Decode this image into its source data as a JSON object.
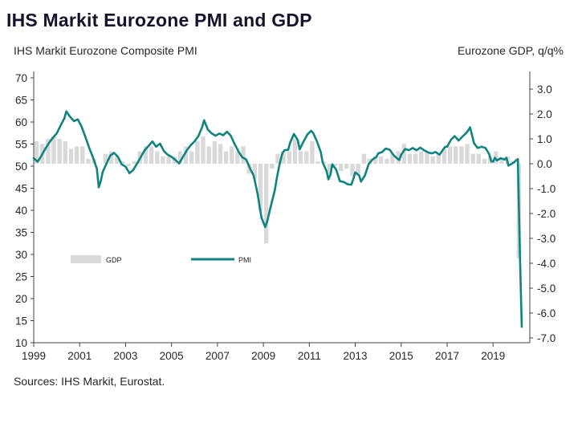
{
  "page": {
    "title": "IHS Markit Eurozone PMI and GDP",
    "subtitle_left": "IHS Markit Eurozone Composite PMI",
    "subtitle_right": "Eurozone GDP, q/q%",
    "sources": "Sources: IHS Markit, Eurostat."
  },
  "colors": {
    "pmi_line": "#0f837d",
    "gdp_bar": "#d9d9d9",
    "axis": "#404040",
    "text": "#262626",
    "title": "#14142b"
  },
  "chart_data": {
    "type": "line+bar",
    "title": "IHS Markit Eurozone PMI and GDP",
    "left_axis": {
      "label": "IHS Markit Eurozone Composite PMI",
      "min": 10,
      "max": 70,
      "ticks": [
        10,
        15,
        20,
        25,
        30,
        35,
        40,
        45,
        50,
        55,
        60,
        65,
        70
      ]
    },
    "right_axis": {
      "label": "Eurozone GDP, q/q%",
      "min": -7,
      "max": 3,
      "tick_labels": [
        "-7.0",
        "-6.0",
        "-5.0",
        "-4.0",
        "-3.0",
        "-2.0",
        "-1.0",
        "0.0",
        "1.0",
        "2.0",
        "3.0"
      ]
    },
    "x_axis": {
      "min": 1999,
      "max": 2020.6,
      "ticks": [
        1999,
        2001,
        2003,
        2005,
        2007,
        2009,
        2011,
        2013,
        2015,
        2017,
        2019
      ]
    },
    "legend": {
      "gdp_label": "GDP",
      "pmi_label": "PMI",
      "position": "inside-lower-left"
    },
    "grid": false,
    "series": [
      {
        "name": "GDP",
        "type": "bar",
        "axis": "right",
        "frequency": "quarterly",
        "start": "1999Q1",
        "values": [
          0.9,
          0.8,
          1.0,
          1.1,
          1.0,
          0.9,
          0.6,
          0.7,
          0.7,
          0.2,
          0.2,
          0.0,
          0.4,
          0.5,
          0.3,
          0.1,
          -0.1,
          0.1,
          0.5,
          0.7,
          0.7,
          0.5,
          0.3,
          0.3,
          0.3,
          0.5,
          0.7,
          0.5,
          0.9,
          1.1,
          0.7,
          0.9,
          0.8,
          0.5,
          0.7,
          0.5,
          0.7,
          -0.4,
          -0.6,
          -1.9,
          -3.2,
          -0.2,
          0.4,
          0.5,
          0.5,
          1.0,
          0.5,
          0.5,
          0.9,
          0.1,
          0.1,
          -0.4,
          -0.1,
          -0.3,
          -0.2,
          -0.5,
          -0.4,
          0.4,
          0.2,
          0.3,
          0.3,
          0.2,
          0.4,
          0.5,
          0.8,
          0.4,
          0.4,
          0.5,
          0.5,
          0.3,
          0.4,
          0.6,
          0.7,
          0.7,
          0.7,
          0.8,
          0.4,
          0.4,
          0.2,
          0.3,
          0.5,
          0.2,
          0.3,
          0.1,
          -3.8
        ]
      },
      {
        "name": "PMI",
        "type": "line",
        "axis": "left",
        "points": [
          [
            1999.0,
            51.8
          ],
          [
            1999.17,
            51.0
          ],
          [
            1999.33,
            52.3
          ],
          [
            1999.5,
            53.9
          ],
          [
            1999.67,
            55.3
          ],
          [
            1999.83,
            56.4
          ],
          [
            2000.0,
            57.4
          ],
          [
            2000.17,
            59.2
          ],
          [
            2000.33,
            60.8
          ],
          [
            2000.42,
            62.4
          ],
          [
            2000.58,
            61.2
          ],
          [
            2000.75,
            60.2
          ],
          [
            2000.92,
            60.6
          ],
          [
            2001.08,
            59.0
          ],
          [
            2001.25,
            56.6
          ],
          [
            2001.42,
            54.1
          ],
          [
            2001.58,
            52.0
          ],
          [
            2001.75,
            49.4
          ],
          [
            2001.83,
            45.2
          ],
          [
            2001.92,
            46.6
          ],
          [
            2002.0,
            48.6
          ],
          [
            2002.17,
            50.6
          ],
          [
            2002.33,
            52.4
          ],
          [
            2002.5,
            53.0
          ],
          [
            2002.67,
            52.1
          ],
          [
            2002.83,
            50.4
          ],
          [
            2003.0,
            49.9
          ],
          [
            2003.17,
            48.4
          ],
          [
            2003.33,
            49.1
          ],
          [
            2003.5,
            50.6
          ],
          [
            2003.67,
            52.1
          ],
          [
            2003.83,
            53.6
          ],
          [
            2004.0,
            54.6
          ],
          [
            2004.17,
            55.6
          ],
          [
            2004.33,
            54.4
          ],
          [
            2004.5,
            55.1
          ],
          [
            2004.67,
            53.4
          ],
          [
            2004.83,
            52.6
          ],
          [
            2005.0,
            52.1
          ],
          [
            2005.17,
            51.4
          ],
          [
            2005.33,
            50.6
          ],
          [
            2005.5,
            52.1
          ],
          [
            2005.67,
            53.6
          ],
          [
            2005.83,
            54.7
          ],
          [
            2006.0,
            55.6
          ],
          [
            2006.17,
            56.8
          ],
          [
            2006.33,
            58.8
          ],
          [
            2006.42,
            60.4
          ],
          [
            2006.58,
            58.3
          ],
          [
            2006.75,
            57.4
          ],
          [
            2006.92,
            56.9
          ],
          [
            2007.08,
            57.4
          ],
          [
            2007.25,
            57.0
          ],
          [
            2007.42,
            57.8
          ],
          [
            2007.58,
            56.9
          ],
          [
            2007.75,
            55.0
          ],
          [
            2007.92,
            53.3
          ],
          [
            2008.08,
            52.0
          ],
          [
            2008.25,
            51.5
          ],
          [
            2008.42,
            49.5
          ],
          [
            2008.58,
            47.8
          ],
          [
            2008.75,
            43.6
          ],
          [
            2008.83,
            41.1
          ],
          [
            2008.92,
            38.3
          ],
          [
            2009.08,
            36.2
          ],
          [
            2009.17,
            37.6
          ],
          [
            2009.33,
            41.1
          ],
          [
            2009.5,
            44.6
          ],
          [
            2009.58,
            47.1
          ],
          [
            2009.67,
            49.6
          ],
          [
            2009.75,
            51.4
          ],
          [
            2009.83,
            53.0
          ],
          [
            2009.92,
            53.6
          ],
          [
            2010.08,
            53.7
          ],
          [
            2010.17,
            55.4
          ],
          [
            2010.33,
            57.3
          ],
          [
            2010.5,
            55.9
          ],
          [
            2010.58,
            53.8
          ],
          [
            2010.75,
            55.6
          ],
          [
            2010.92,
            57.2
          ],
          [
            2011.08,
            58.0
          ],
          [
            2011.17,
            57.5
          ],
          [
            2011.33,
            55.6
          ],
          [
            2011.5,
            53.2
          ],
          [
            2011.58,
            50.9
          ],
          [
            2011.75,
            48.9
          ],
          [
            2011.83,
            47.0
          ],
          [
            2011.92,
            48.1
          ],
          [
            2012.0,
            50.4
          ],
          [
            2012.17,
            49.2
          ],
          [
            2012.33,
            46.6
          ],
          [
            2012.5,
            46.4
          ],
          [
            2012.67,
            45.9
          ],
          [
            2012.83,
            45.8
          ],
          [
            2012.92,
            47.2
          ],
          [
            2013.0,
            48.6
          ],
          [
            2013.17,
            47.9
          ],
          [
            2013.25,
            46.5
          ],
          [
            2013.42,
            47.9
          ],
          [
            2013.58,
            50.4
          ],
          [
            2013.75,
            51.5
          ],
          [
            2013.92,
            52.1
          ],
          [
            2014.0,
            52.9
          ],
          [
            2014.17,
            53.2
          ],
          [
            2014.33,
            54.0
          ],
          [
            2014.5,
            53.7
          ],
          [
            2014.67,
            52.5
          ],
          [
            2014.83,
            51.7
          ],
          [
            2014.92,
            51.4
          ],
          [
            2015.0,
            52.6
          ],
          [
            2015.17,
            53.9
          ],
          [
            2015.33,
            53.6
          ],
          [
            2015.5,
            54.1
          ],
          [
            2015.67,
            53.6
          ],
          [
            2015.83,
            54.2
          ],
          [
            2016.0,
            53.6
          ],
          [
            2016.17,
            53.1
          ],
          [
            2016.33,
            52.9
          ],
          [
            2016.5,
            53.2
          ],
          [
            2016.67,
            52.6
          ],
          [
            2016.83,
            53.8
          ],
          [
            2016.92,
            54.4
          ],
          [
            2017.0,
            54.4
          ],
          [
            2017.17,
            56.0
          ],
          [
            2017.33,
            56.8
          ],
          [
            2017.5,
            55.8
          ],
          [
            2017.67,
            56.7
          ],
          [
            2017.83,
            57.5
          ],
          [
            2017.92,
            58.1
          ],
          [
            2018.0,
            58.8
          ],
          [
            2018.08,
            57.1
          ],
          [
            2018.17,
            55.2
          ],
          [
            2018.33,
            54.1
          ],
          [
            2018.5,
            54.4
          ],
          [
            2018.67,
            54.1
          ],
          [
            2018.83,
            52.7
          ],
          [
            2018.92,
            51.1
          ],
          [
            2019.0,
            51.0
          ],
          [
            2019.08,
            51.9
          ],
          [
            2019.17,
            51.3
          ],
          [
            2019.33,
            51.8
          ],
          [
            2019.5,
            51.5
          ],
          [
            2019.58,
            51.9
          ],
          [
            2019.67,
            50.1
          ],
          [
            2019.83,
            50.6
          ],
          [
            2019.92,
            50.9
          ],
          [
            2020.0,
            51.3
          ],
          [
            2020.08,
            51.6
          ],
          [
            2020.17,
            29.7
          ],
          [
            2020.25,
            13.6
          ]
        ]
      }
    ]
  }
}
